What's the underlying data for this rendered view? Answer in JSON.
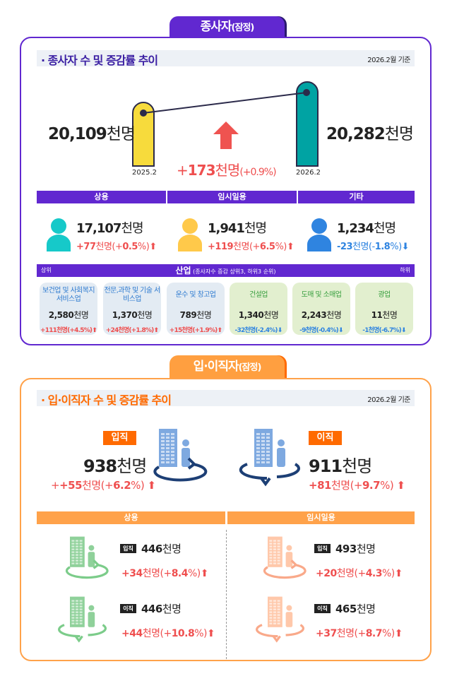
{
  "colors": {
    "purple": "#6128d0",
    "orange": "#ff9f40",
    "orange_dark": "#ff6a00",
    "increase": "#ef4f4f",
    "decrease": "#2f84e0"
  },
  "employees": {
    "tab_title": "종사자",
    "tab_suffix": "(잠정)",
    "heading": "· 종사자 수 및 증감률 추이",
    "as_of": "2026.2월 기준",
    "prev": {
      "value": "20,109",
      "unit": "천명",
      "label": "2025.2"
    },
    "curr": {
      "value": "20,282",
      "unit": "천명",
      "label": "2026.2"
    },
    "change": {
      "sign": "+",
      "value": "173",
      "unit": "천명",
      "pct": "(+0.9%)",
      "icon": "arrow-up-icon"
    },
    "types": [
      {
        "label": "상용",
        "value": "17,107",
        "unit": "천명",
        "change": "+77",
        "change_unit": "천명",
        "pct_open": "(+",
        "pct": "0.5",
        "pct_close": "%)",
        "dir": "up",
        "icon_color": "#16c9c9"
      },
      {
        "label": "임시일용",
        "value": "1,941",
        "unit": "천명",
        "change": "+119",
        "change_unit": "천명",
        "pct_open": "(+",
        "pct": "6.5",
        "pct_close": "%)",
        "dir": "up",
        "icon_color": "#ffc94a"
      },
      {
        "label": "기타",
        "value": "1,234",
        "unit": "천명",
        "change": "-23",
        "change_unit": "천명",
        "pct_open": "(-",
        "pct": "1.8",
        "pct_close": "%)",
        "dir": "down",
        "icon_color": "#2f84e0"
      }
    ],
    "industry": {
      "left": "상위",
      "title": "산업",
      "subtitle": "(종사자수 증감 상위3, 하위3 순위)",
      "right": "하위",
      "items": [
        {
          "name": "보건업 및 사회복지 서비스업",
          "value": "2,580",
          "unit": "천명",
          "change": "+111천명(+4.5%)",
          "dir": "up"
        },
        {
          "name": "전문,과학 및 기술 서비스업",
          "value": "1,370",
          "unit": "천명",
          "change": "+24천명(+1.8%)",
          "dir": "up"
        },
        {
          "name": "운수 및 창고업",
          "value": "789",
          "unit": "천명",
          "change": "+15천명(+1.9%)",
          "dir": "up"
        },
        {
          "name": "건설업",
          "value": "1,340",
          "unit": "천명",
          "change": "-32천명(-2.4%)",
          "dir": "down"
        },
        {
          "name": "도매 및 소매업",
          "value": "2,243",
          "unit": "천명",
          "change": "-9천명(-0.4%)",
          "dir": "down"
        },
        {
          "name": "광업",
          "value": "11",
          "unit": "천명",
          "change": "-1천명(-6.7%)",
          "dir": "down"
        }
      ]
    }
  },
  "turnover": {
    "tab_title": "입·이직자",
    "tab_suffix": "(잠정)",
    "heading": "· 입·이직자 수 및 증감률 추이",
    "as_of": "2026.2월 기준",
    "hire": {
      "badge": "입직",
      "value": "938",
      "unit": "천명",
      "change": "+55",
      "change_unit": "천명",
      "pct_open": "(+",
      "pct": "6.2",
      "pct_close": "%)"
    },
    "sep": {
      "badge": "이직",
      "value": "911",
      "unit": "천명",
      "change": "+81",
      "change_unit": "천명",
      "pct_open": "(+",
      "pct": "9.7",
      "pct_close": "%)"
    },
    "groups": [
      {
        "label": "상용",
        "icon_color": "#8fd19a",
        "ring_color": "#7ccc8a",
        "rows": [
          {
            "badge": "입직",
            "value": "446",
            "unit": "천명",
            "change": "+34",
            "change_unit": "천명",
            "pct_open": "(+",
            "pct": "8.4",
            "pct_close": "%)"
          },
          {
            "badge": "이직",
            "value": "446",
            "unit": "천명",
            "change": "+44",
            "change_unit": "천명",
            "pct_open": "(+",
            "pct": "10.8",
            "pct_close": "%)"
          }
        ]
      },
      {
        "label": "임시일용",
        "icon_color": "#ffc8aa",
        "ring_color": "#f9a98a",
        "rows": [
          {
            "badge": "입직",
            "value": "493",
            "unit": "천명",
            "change": "+20",
            "change_unit": "천명",
            "pct_open": "(+",
            "pct": "4.3",
            "pct_close": "%)"
          },
          {
            "badge": "이직",
            "value": "465",
            "unit": "천명",
            "change": "+37",
            "change_unit": "천명",
            "pct_open": "(+",
            "pct": "8.7",
            "pct_close": "%)"
          }
        ]
      }
    ]
  }
}
